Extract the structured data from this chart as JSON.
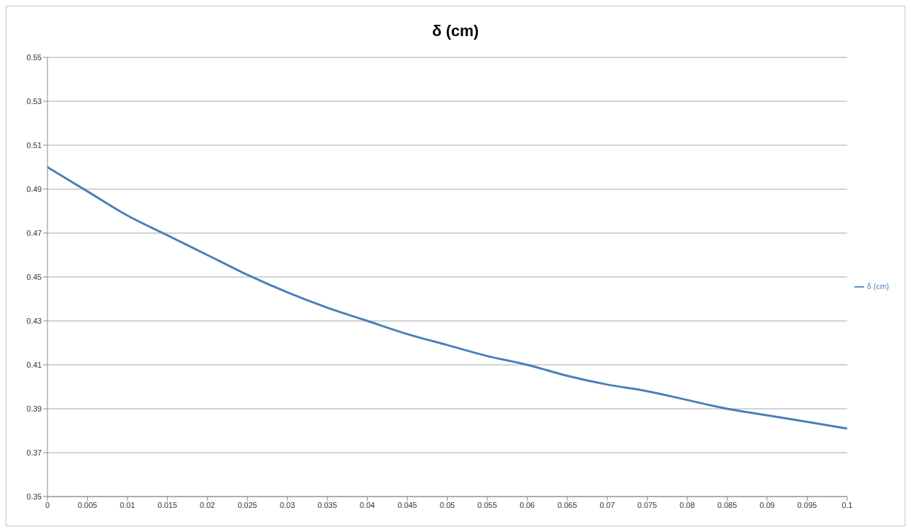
{
  "chart_data": {
    "type": "line",
    "title": "δ (cm)",
    "categories": [
      "0",
      "0.005",
      "0.01",
      "0.015",
      "0.02",
      "0.025",
      "0.03",
      "0.035",
      "0.04",
      "0.045",
      "0.05",
      "0.055",
      "0.06",
      "0.065",
      "0.07",
      "0.075",
      "0.08",
      "0.085",
      "0.09",
      "0.095",
      "0.1"
    ],
    "series": [
      {
        "name": "δ (cm)",
        "color": "#4a7ebb",
        "values": [
          0.5,
          0.489,
          0.478,
          0.469,
          0.46,
          0.451,
          0.443,
          0.436,
          0.43,
          0.424,
          0.419,
          0.414,
          0.41,
          0.405,
          0.401,
          0.398,
          0.394,
          0.39,
          0.387,
          0.384,
          0.381
        ]
      }
    ],
    "ylim": [
      0.35,
      0.55
    ],
    "yticks": [
      0.35,
      0.37,
      0.39,
      0.41,
      0.43,
      0.45,
      0.47,
      0.49,
      0.51,
      0.53,
      0.55
    ],
    "grid": "y",
    "legend": "right",
    "marker": "none",
    "line_style": "solid"
  }
}
